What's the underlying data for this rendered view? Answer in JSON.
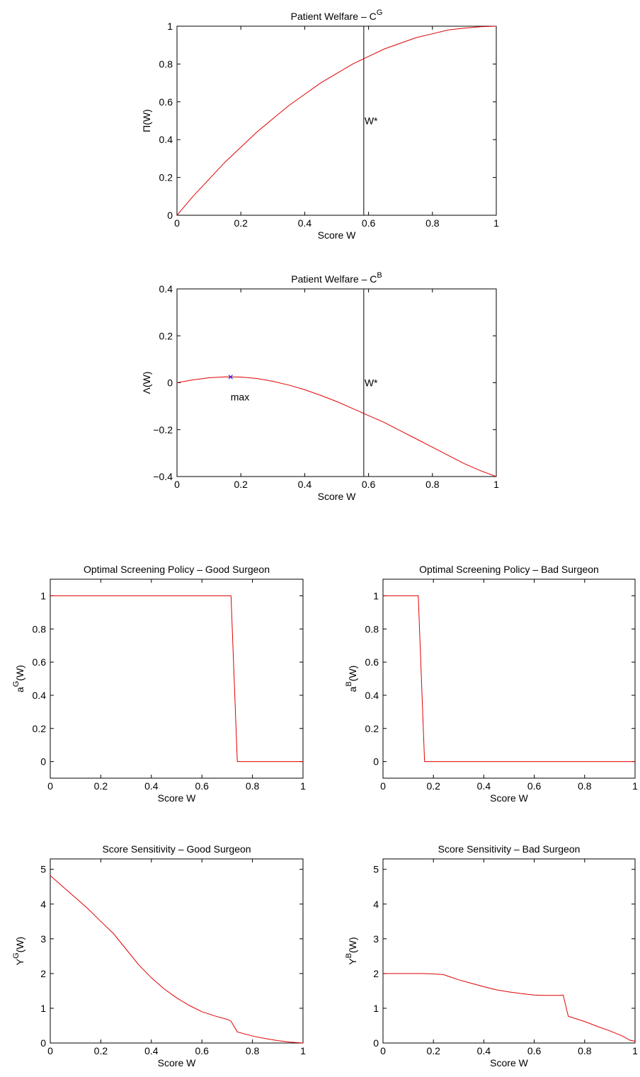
{
  "chart_data": [
    {
      "id": "welfare-g",
      "type": "line",
      "title": "Patient Welfare – C",
      "title_sup": "G",
      "xlabel": "Score W",
      "ylabel": "Π(W)",
      "ylabel_sup": "",
      "ylabel_tail": "",
      "xlim": [
        0,
        1
      ],
      "ylim": [
        0,
        1
      ],
      "xticks": [
        0,
        0.2,
        0.4,
        0.6,
        0.8,
        1
      ],
      "xticklabels": [
        "0",
        "0.2",
        "0.4",
        "0.6",
        "0.8",
        "1"
      ],
      "yticks": [
        0,
        0.2,
        0.4,
        0.6,
        0.8,
        1
      ],
      "yticklabels": [
        "0",
        "0.2",
        "0.4",
        "0.6",
        "0.8",
        "1"
      ],
      "series": [
        {
          "color": "#e00000",
          "x": [
            0,
            0.05,
            0.1,
            0.15,
            0.2,
            0.25,
            0.3,
            0.35,
            0.4,
            0.45,
            0.5,
            0.55,
            0.6,
            0.65,
            0.7,
            0.75,
            0.8,
            0.85,
            0.9,
            0.95,
            1.0
          ],
          "y": [
            0,
            0.1,
            0.19,
            0.28,
            0.36,
            0.44,
            0.51,
            0.58,
            0.64,
            0.7,
            0.75,
            0.8,
            0.84,
            0.88,
            0.91,
            0.94,
            0.96,
            0.98,
            0.99,
            0.997,
            1.0
          ]
        }
      ],
      "vline": {
        "x": 0.585,
        "label": "W*",
        "label_y": 0.5
      }
    },
    {
      "id": "welfare-b",
      "type": "line",
      "title": "Patient Welfare – C",
      "title_sup": "B",
      "xlabel": "Score W",
      "ylabel": "Λ(W)",
      "ylabel_sup": "",
      "ylabel_tail": "",
      "xlim": [
        0,
        1
      ],
      "ylim": [
        -0.4,
        0.4
      ],
      "xticks": [
        0,
        0.2,
        0.4,
        0.6,
        0.8,
        1
      ],
      "xticklabels": [
        "0",
        "0.2",
        "0.4",
        "0.6",
        "0.8",
        "1"
      ],
      "yticks": [
        -0.4,
        -0.2,
        0,
        0.2,
        0.4
      ],
      "yticklabels": [
        "−0.4",
        "−0.2",
        "0",
        "0.2",
        "0.4"
      ],
      "series": [
        {
          "color": "#e00000",
          "x": [
            0,
            0.05,
            0.1,
            0.15,
            0.2,
            0.25,
            0.3,
            0.35,
            0.4,
            0.45,
            0.5,
            0.55,
            0.6,
            0.65,
            0.7,
            0.75,
            0.8,
            0.85,
            0.9,
            0.95,
            1.0
          ],
          "y": [
            0,
            0.012,
            0.021,
            0.025,
            0.024,
            0.018,
            0.006,
            -0.01,
            -0.03,
            -0.054,
            -0.08,
            -0.11,
            -0.14,
            -0.17,
            -0.205,
            -0.24,
            -0.275,
            -0.31,
            -0.345,
            -0.375,
            -0.4
          ]
        }
      ],
      "vline": {
        "x": 0.585,
        "label": "W*",
        "label_y": 0.0
      },
      "marker": {
        "x": 0.168,
        "y": 0.025,
        "symbol": "×",
        "color": "#0000cc",
        "label": "max",
        "label_y": -0.06
      }
    },
    {
      "id": "policy-good",
      "type": "line",
      "title": "Optimal Screening Policy – Good Surgeon",
      "title_sup": "",
      "xlabel": "Score W",
      "ylabel": "a",
      "ylabel_sup": "G",
      "ylabel_tail": "(W)",
      "xlim": [
        0,
        1
      ],
      "ylim": [
        -0.1,
        1.1
      ],
      "xticks": [
        0,
        0.2,
        0.4,
        0.6,
        0.8,
        1
      ],
      "xticklabels": [
        "0",
        "0.2",
        "0.4",
        "0.6",
        "0.8",
        "1"
      ],
      "yticks": [
        0,
        0.2,
        0.4,
        0.6,
        0.8,
        1
      ],
      "yticklabels": [
        "0",
        "0.2",
        "0.4",
        "0.6",
        "0.8",
        "1"
      ],
      "series": [
        {
          "color": "#e00000",
          "x": [
            0,
            0.715,
            0.74,
            1.0
          ],
          "y": [
            1,
            1,
            0,
            0
          ]
        }
      ]
    },
    {
      "id": "policy-bad",
      "type": "line",
      "title": "Optimal Screening Policy – Bad Surgeon",
      "title_sup": "",
      "xlabel": "Score W",
      "ylabel": "a",
      "ylabel_sup": "B",
      "ylabel_tail": "(W)",
      "xlim": [
        0,
        1
      ],
      "ylim": [
        -0.1,
        1.1
      ],
      "xticks": [
        0,
        0.2,
        0.4,
        0.6,
        0.8,
        1
      ],
      "xticklabels": [
        "0",
        "0.2",
        "0.4",
        "0.6",
        "0.8",
        "1"
      ],
      "yticks": [
        0,
        0.2,
        0.4,
        0.6,
        0.8,
        1
      ],
      "yticklabels": [
        "0",
        "0.2",
        "0.4",
        "0.6",
        "0.8",
        "1"
      ],
      "series": [
        {
          "color": "#e00000",
          "x": [
            0,
            0.14,
            0.165,
            1.0
          ],
          "y": [
            1,
            1,
            0,
            0
          ]
        }
      ]
    },
    {
      "id": "sensitivity-good",
      "type": "line",
      "title": "Score Sensitivity – Good Surgeon",
      "title_sup": "",
      "xlabel": "Score W",
      "ylabel": "Y",
      "ylabel_sup": "G",
      "ylabel_tail": "(W)",
      "xlim": [
        0,
        1
      ],
      "ylim": [
        0,
        5.3
      ],
      "xticks": [
        0,
        0.2,
        0.4,
        0.6,
        0.8,
        1
      ],
      "xticklabels": [
        "0",
        "0.2",
        "0.4",
        "0.6",
        "0.8",
        "1"
      ],
      "yticks": [
        0,
        1,
        2,
        3,
        4,
        5
      ],
      "yticklabels": [
        "0",
        "1",
        "2",
        "3",
        "4",
        "5"
      ],
      "series": [
        {
          "color": "#e00000",
          "x": [
            0,
            0.05,
            0.1,
            0.15,
            0.2,
            0.25,
            0.3,
            0.35,
            0.4,
            0.45,
            0.5,
            0.55,
            0.6,
            0.65,
            0.7,
            0.715,
            0.74,
            0.8,
            0.85,
            0.9,
            0.95,
            1.0
          ],
          "y": [
            4.82,
            4.5,
            4.18,
            3.86,
            3.5,
            3.15,
            2.7,
            2.25,
            1.88,
            1.56,
            1.3,
            1.08,
            0.9,
            0.78,
            0.68,
            0.63,
            0.32,
            0.2,
            0.13,
            0.07,
            0.025,
            0.0
          ]
        }
      ]
    },
    {
      "id": "sensitivity-bad",
      "type": "line",
      "title": "Score Sensitivity – Bad Surgeon",
      "title_sup": "",
      "xlabel": "Score W",
      "ylabel": "Y",
      "ylabel_sup": "B",
      "ylabel_tail": "(W)",
      "xlim": [
        0,
        1
      ],
      "ylim": [
        0,
        5.3
      ],
      "xticks": [
        0,
        0.2,
        0.4,
        0.6,
        0.8,
        1
      ],
      "xticklabels": [
        "0",
        "0.2",
        "0.4",
        "0.6",
        "0.8",
        "1"
      ],
      "yticks": [
        0,
        1,
        2,
        3,
        4,
        5
      ],
      "yticklabels": [
        "0",
        "1",
        "2",
        "3",
        "4",
        "5"
      ],
      "series": [
        {
          "color": "#e00000",
          "x": [
            0,
            0.1,
            0.15,
            0.2,
            0.24,
            0.3,
            0.35,
            0.4,
            0.45,
            0.5,
            0.55,
            0.6,
            0.65,
            0.7,
            0.715,
            0.735,
            0.8,
            0.85,
            0.9,
            0.95,
            0.98,
            1.0
          ],
          "y": [
            2.0,
            2.0,
            2.0,
            1.99,
            1.97,
            1.82,
            1.72,
            1.62,
            1.53,
            1.47,
            1.42,
            1.38,
            1.37,
            1.37,
            1.38,
            0.77,
            0.62,
            0.48,
            0.35,
            0.2,
            0.08,
            0.05
          ]
        }
      ]
    }
  ]
}
